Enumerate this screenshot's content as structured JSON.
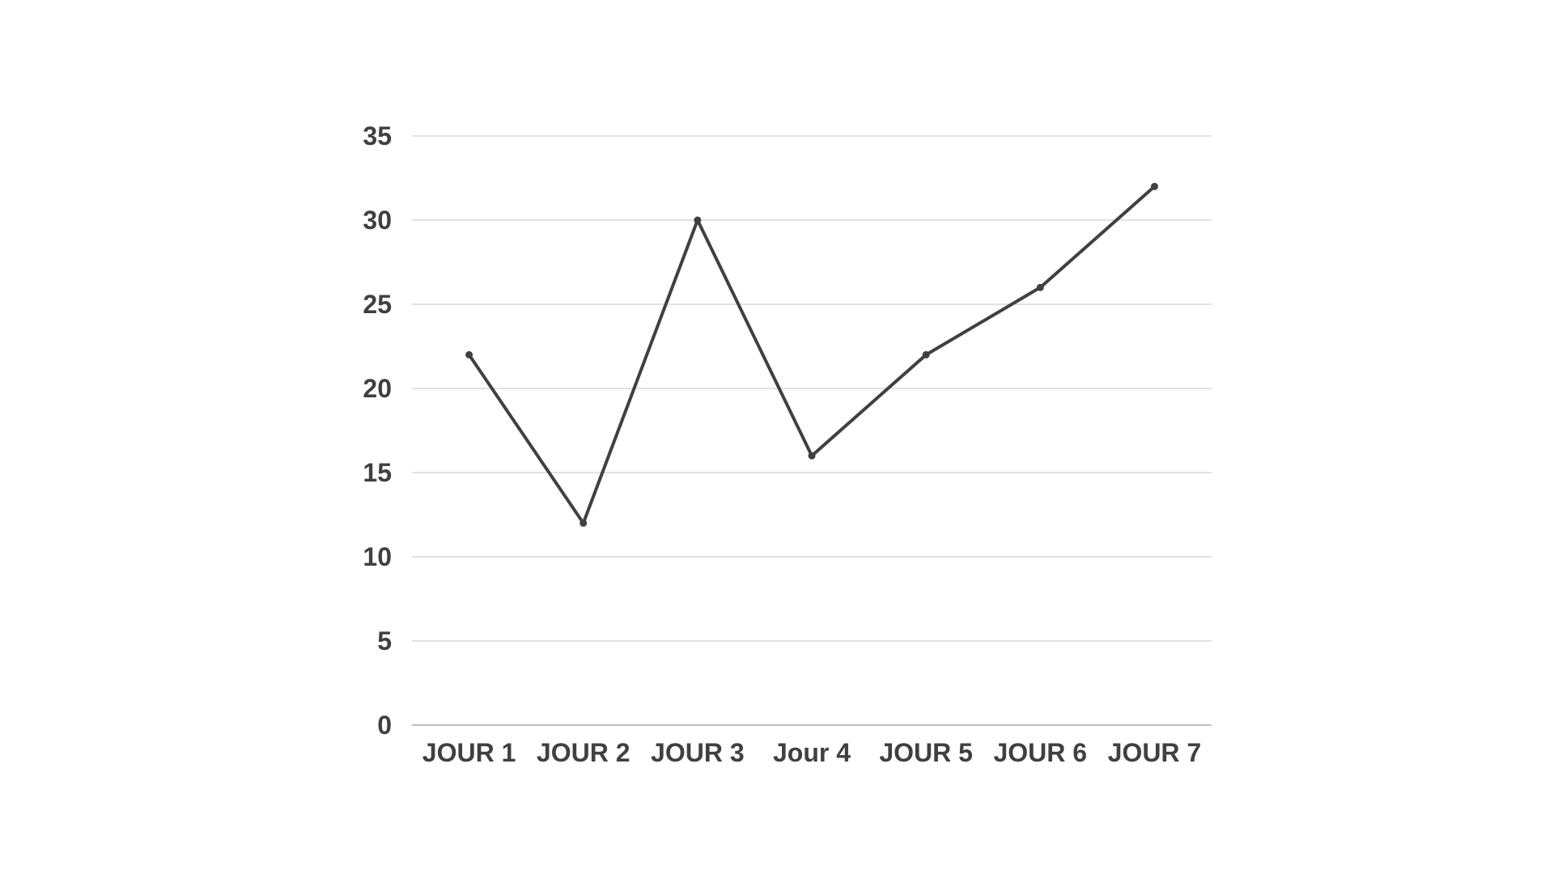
{
  "chart_data": {
    "type": "line",
    "title": "",
    "xlabel": "",
    "ylabel": "",
    "categories": [
      "JOUR 1",
      "JOUR 2",
      "JOUR 3",
      "Jour 4",
      "JOUR 5",
      "JOUR 6",
      "JOUR 7"
    ],
    "series": [
      {
        "values": [
          22,
          12,
          30,
          16,
          22,
          26,
          32
        ]
      }
    ],
    "ylim": [
      0,
      35
    ],
    "yticks": [
      "0",
      "5",
      "10",
      "15",
      "20",
      "25",
      "30",
      "35"
    ],
    "grid": "horizontal",
    "legend": "none",
    "colors": {
      "line": "#404040",
      "grid": "#d9d9d9",
      "axis": "#bfbfbf",
      "text": "#404040"
    }
  }
}
